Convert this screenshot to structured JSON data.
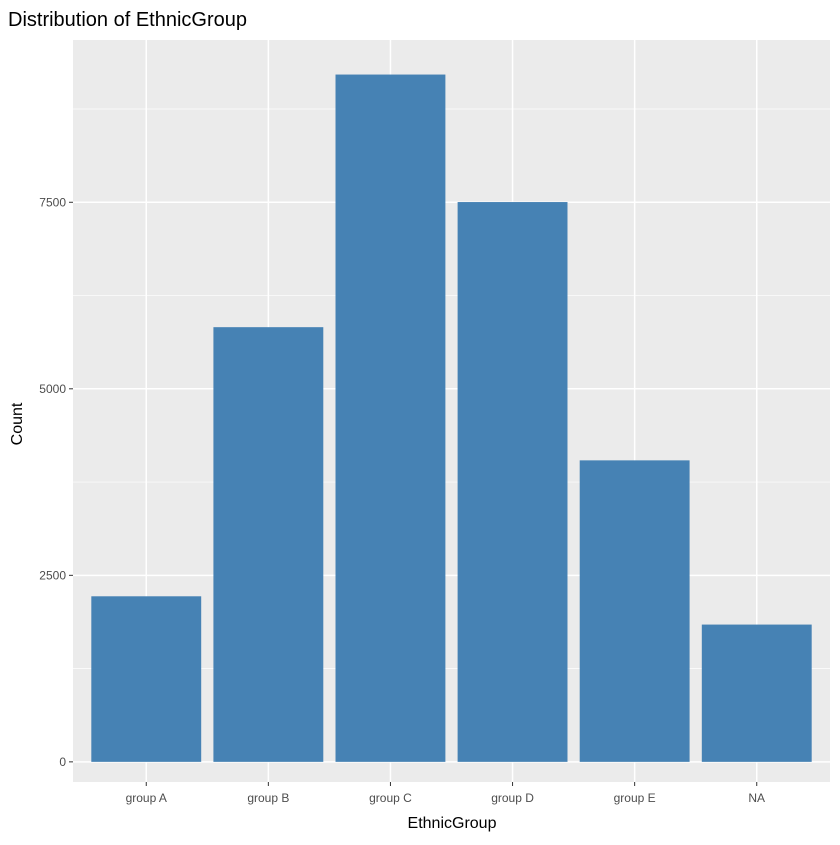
{
  "chart_data": {
    "type": "bar",
    "title": "Distribution of EthnicGroup",
    "xlabel": "EthnicGroup",
    "ylabel": "Count",
    "categories": [
      "group A",
      "group B",
      "group C",
      "group D",
      "group E",
      "NA"
    ],
    "values": [
      2219,
      5826,
      9212,
      7503,
      4041,
      1840
    ],
    "ylim": [
      -270,
      9675
    ],
    "yticks": [
      0,
      2500,
      5000,
      7500
    ],
    "ytick_labels": [
      "0",
      "2500",
      "5000",
      "7500"
    ],
    "grid": true,
    "legend": "none",
    "colors": {
      "bar": "#4682B4",
      "panel": "#EBEBEB",
      "grid": "#FFFFFF"
    }
  }
}
